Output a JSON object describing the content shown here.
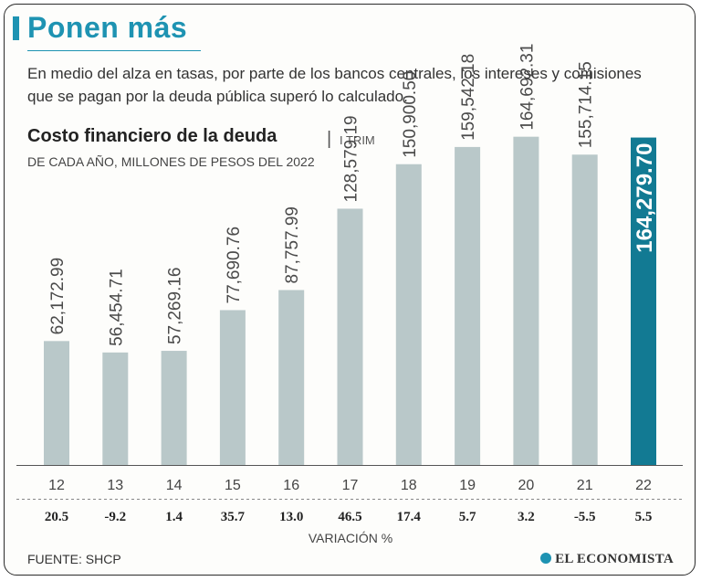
{
  "header": {
    "title": "Ponen más",
    "subtitle": "En medio del alza en tasas, por parte de los bancos centrales, los intereses y comisiones que se pagan por la deuda pública superó lo calculado."
  },
  "chart_data": {
    "type": "bar",
    "title": "Costo financiero de la deuda",
    "title_separator": "|",
    "title_suffix": "I TRIM",
    "subtitle": "DE CADA AÑO, MILLONES DE PESOS DEL 2022",
    "categories": [
      "12",
      "13",
      "14",
      "15",
      "16",
      "17",
      "18",
      "19",
      "20",
      "21",
      "22"
    ],
    "values": [
      62172.99,
      56454.71,
      57269.16,
      77690.76,
      87757.99,
      128579.19,
      150900.5,
      159542.18,
      164692.31,
      155714.15,
      164279.7
    ],
    "value_labels": [
      "62,172.99",
      "56,454.71",
      "57,269.16",
      "77,690.76",
      "87,757.99",
      "128,579.19",
      "150,900.50",
      "159,542.18",
      "164,692.31",
      "155,714.15",
      "164,279.70"
    ],
    "variation": [
      "20.5",
      "-9.2",
      "1.4",
      "35.7",
      "13.0",
      "46.5",
      "17.4",
      "5.7",
      "3.2",
      "-5.5",
      "5.5"
    ],
    "variation_label": "VARIACIÓN %",
    "highlight_index": 10,
    "ylim": [
      0,
      165000
    ],
    "colors": {
      "bar": "#b9c8c9",
      "highlight": "#127a93",
      "label": "#4a4a4a",
      "highlight_label": "#ffffff"
    }
  },
  "footer": {
    "source": "FUENTE: SHCP",
    "logo": "EL ECONOMISTA"
  }
}
